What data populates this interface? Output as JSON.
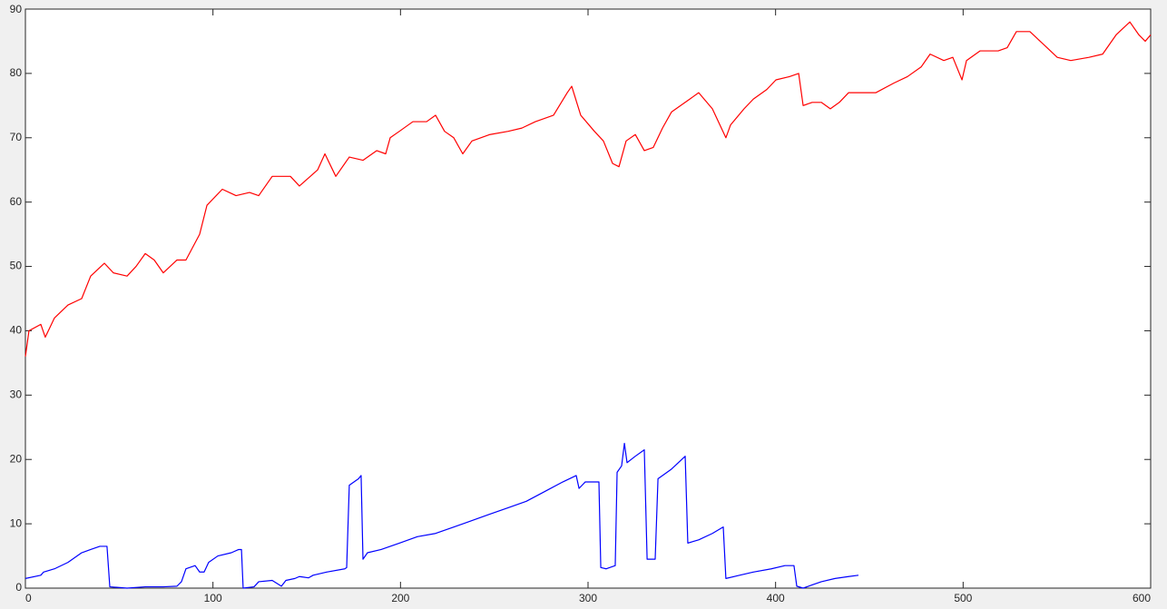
{
  "chart_data": {
    "type": "line",
    "xlim": [
      0,
      600
    ],
    "ylim": [
      0,
      90
    ],
    "xticks": [
      0,
      100,
      200,
      300,
      400,
      500,
      600
    ],
    "yticks": [
      0,
      10,
      20,
      30,
      40,
      50,
      60,
      70,
      80,
      90
    ],
    "grid": false,
    "series": [
      {
        "color": "#ff0000",
        "x": [
          0,
          1.9,
          8.2,
          10.6,
          15.5,
          22.7,
          30,
          34.8,
          42.1,
          46.9,
          54.2,
          59,
          63.9,
          68.7,
          73.5,
          80.8,
          85.6,
          92.9,
          96.8,
          105,
          112.3,
          119.5,
          124.4,
          131.6,
          141.3,
          146.1,
          155.8,
          159.7,
          165.5,
          172.7,
          180,
          187.3,
          192.1,
          194.5,
          199.4,
          206.6,
          213.9,
          218.7,
          223.5,
          228.4,
          233.2,
          238.1,
          247.7,
          257.4,
          264.7,
          271.9,
          281.6,
          288.9,
          291.3,
          296.1,
          303.4,
          308.2,
          313.1,
          316.5,
          320.3,
          325.2,
          330,
          334.8,
          339.7,
          344.5,
          354.2,
          359,
          366.3,
          371.1,
          373.5,
          376,
          383.2,
          388.1,
          395.3,
          400.2,
          407.4,
          412.3,
          414.7,
          419.5,
          424.4,
          429.2,
          434,
          438.9,
          446.1,
          453.4,
          463.1,
          470.3,
          477.6,
          482.4,
          489.7,
          494.5,
          499.4,
          501.8,
          509,
          518.7,
          523.5,
          528.4,
          535.6,
          542.9,
          550.2,
          557.4,
          567.1,
          574.4,
          581.6,
          588.9,
          593.7,
          597.1,
          600
        ],
        "values": [
          36,
          40,
          41,
          39,
          42,
          44,
          45,
          48.5,
          50.5,
          49,
          48.5,
          50,
          52,
          51,
          49,
          51,
          51,
          55,
          59.5,
          62,
          61,
          61.5,
          61,
          64,
          64,
          62.5,
          65,
          67.5,
          64,
          67,
          66.5,
          68,
          67.5,
          70,
          71,
          72.5,
          72.5,
          73.5,
          71,
          70,
          67.5,
          69.5,
          70.5,
          71,
          71.5,
          72.5,
          73.5,
          77,
          78,
          73.5,
          71,
          69.5,
          66,
          65.5,
          69.5,
          70.5,
          68,
          68.5,
          71.5,
          74,
          76,
          77,
          74.5,
          71.5,
          70,
          72,
          74.5,
          76,
          77.5,
          79,
          79.5,
          80,
          75,
          75.5,
          75.5,
          74.5,
          75.5,
          77,
          77,
          77,
          78.5,
          79.5,
          81,
          83,
          82,
          82.5,
          79,
          82,
          83.5,
          83.5,
          84,
          86.5,
          86.5,
          84.5,
          82.5,
          82,
          82.5,
          83,
          86,
          88,
          86,
          85,
          86
        ]
      },
      {
        "color": "#0000ff",
        "x": [
          0,
          8.2,
          9.7,
          15.5,
          22.7,
          30,
          34.8,
          39.7,
          43.5,
          45,
          54.2,
          63.9,
          73.5,
          80.8,
          83.2,
          85.6,
          90.5,
          92.9,
          95.3,
          97.7,
          102.6,
          109.8,
          113.7,
          115.2,
          116.1,
          121.9,
          124.4,
          131.6,
          136.5,
          138.9,
          143.7,
          146.1,
          151,
          153.4,
          160.6,
          170.3,
          171.3,
          172.7,
          177.6,
          179,
          180,
          182.4,
          189.7,
          199.4,
          209,
          218.7,
          228.4,
          238.1,
          247.7,
          257.4,
          267.1,
          276.8,
          286.5,
          293.7,
          295.2,
          298.5,
          305.8,
          306.8,
          309.7,
          314.5,
          315.5,
          317.9,
          319.4,
          320.8,
          325.2,
          330,
          331.5,
          335.8,
          337.3,
          344.5,
          351.8,
          353.2,
          359,
          366.3,
          372.1,
          373.5,
          380.8,
          388.1,
          397.7,
          405,
          409.8,
          411.3,
          414.7,
          419.5,
          424.4,
          431.7,
          438.9,
          444.2
        ],
        "values": [
          1.5,
          2,
          2.5,
          3,
          4,
          5.5,
          6,
          6.5,
          6.5,
          0.2,
          0,
          0.2,
          0.2,
          0.3,
          1,
          3,
          3.5,
          2.5,
          2.5,
          4,
          5,
          5.5,
          6,
          6,
          0,
          0.2,
          1,
          1.2,
          0.3,
          1.2,
          1.5,
          1.8,
          1.6,
          2,
          2.5,
          3,
          3.2,
          16,
          17,
          17.5,
          4.5,
          5.5,
          6,
          7,
          8,
          8.5,
          9.5,
          10.5,
          11.5,
          12.5,
          13.5,
          15,
          16.5,
          17.5,
          15.5,
          16.5,
          16.5,
          3.2,
          3,
          3.5,
          18,
          19,
          22.5,
          19.5,
          20.5,
          21.5,
          4.5,
          4.5,
          17,
          18.5,
          20.5,
          7,
          7.5,
          8.5,
          9.5,
          1.5,
          2,
          2.5,
          3,
          3.5,
          3.5,
          0.3,
          0,
          0.5,
          1,
          1.5,
          1.8,
          2
        ]
      }
    ]
  }
}
